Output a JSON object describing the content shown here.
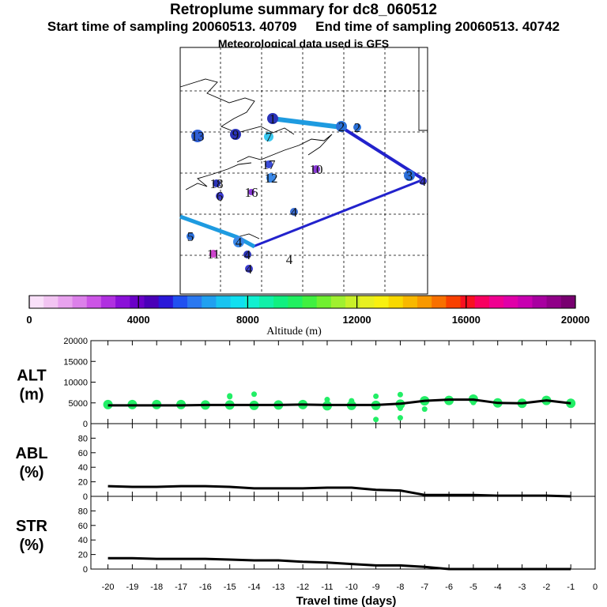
{
  "header": {
    "title": "Retroplume summary for dc8_060512",
    "start_label": "Start time of sampling 20060513. 40709",
    "end_label": "End time of sampling 20060513. 40742",
    "met_label": "Meteorological data used is GFS"
  },
  "colors": {
    "path_light": "#1e9be0",
    "path_dark": "#2222cc",
    "alt_point": "#22ee66",
    "line": "#000000"
  },
  "map": {
    "points": [
      {
        "label": "1",
        "color": "#2a33b8"
      },
      {
        "label": "2",
        "color": "#2a70d8"
      },
      {
        "label": "2",
        "color": "#2a70d8"
      },
      {
        "label": "13",
        "color": "#2e5fd6"
      },
      {
        "label": "9",
        "color": "#2a33b8"
      },
      {
        "label": "7",
        "color": "#38c8f0"
      },
      {
        "label": "17",
        "color": "#3b4bd8"
      },
      {
        "label": "10",
        "color": "#8a3ad8"
      },
      {
        "label": "3",
        "color": "#2a6ed8"
      },
      {
        "label": "12",
        "color": "#3a88e8"
      },
      {
        "label": "18",
        "color": "#2a33b8"
      },
      {
        "label": "6",
        "color": "#3b3bd0"
      },
      {
        "label": "16",
        "color": "#8a3ad8"
      },
      {
        "label": "4",
        "color": "#3a70d8"
      },
      {
        "label": "5",
        "color": "#2a6ed8"
      },
      {
        "label": "4",
        "color": "#3a88e8"
      },
      {
        "label": "4",
        "color": "#2a33b8"
      },
      {
        "label": "11",
        "color": "#cc44cc"
      },
      {
        "label": "4",
        "color": "#3b3bd0"
      },
      {
        "label": "4",
        "color": "#555555"
      },
      {
        "label": "4",
        "color": "#3b3bd0"
      }
    ]
  },
  "colorbar": {
    "ticks": [
      "0",
      "4000",
      "8000",
      "12000",
      "16000",
      "20000"
    ],
    "label": "Altitude  (m)",
    "colors": [
      "#f9e0f9",
      "#f2c4f2",
      "#e8a2ee",
      "#dc80ea",
      "#cc55e6",
      "#b030e0",
      "#8a10d8",
      "#6a00c8",
      "#4a00b8",
      "#2a18d8",
      "#2050f0",
      "#2a78f0",
      "#20a0f0",
      "#18c4f0",
      "#10e0f0",
      "#10f0d0",
      "#10f0a8",
      "#10f080",
      "#20f060",
      "#40f040",
      "#70f030",
      "#a0f030",
      "#c8f028",
      "#e8f020",
      "#f8f010",
      "#f8d800",
      "#f8b800",
      "#f89800",
      "#f87000",
      "#f84000",
      "#f81020",
      "#f80060",
      "#f00090",
      "#e000a8",
      "#c800b0",
      "#a800a0",
      "#900088",
      "#780070"
    ]
  },
  "chart_data": [
    {
      "type": "scatter",
      "panel_label": "ALT\n(m)",
      "panel_label_line1": "ALT",
      "panel_label_line2": "(m)",
      "ylim": [
        0,
        20000
      ],
      "yticks": [
        "0",
        "5000",
        "10000",
        "15000",
        "20000"
      ],
      "line": {
        "x": [
          -20,
          -19,
          -18,
          -17,
          -16,
          -15,
          -14,
          -13,
          -12,
          -11,
          -10,
          -9,
          -8,
          -7,
          -6,
          -5,
          -4,
          -3,
          -2,
          -1
        ],
        "y": [
          4400,
          4400,
          4400,
          4400,
          4500,
          4500,
          4500,
          4500,
          4600,
          4500,
          4500,
          4500,
          4800,
          5500,
          5800,
          5800,
          5000,
          4900,
          5600,
          4900
        ]
      },
      "points": {
        "x": [
          -20,
          -19,
          -18,
          -17,
          -16,
          -15,
          -14,
          -13,
          -12,
          -11,
          -10,
          -9,
          -8,
          -7,
          -6,
          -5,
          -4,
          -3,
          -2,
          -1,
          -15,
          -14,
          -11,
          -10,
          -9,
          -8,
          -8,
          -7,
          -6,
          -5,
          -15,
          -9,
          -8
        ],
        "y": [
          4600,
          4600,
          4600,
          4600,
          4500,
          4500,
          4400,
          4500,
          4600,
          4300,
          4400,
          4400,
          4700,
          5500,
          5600,
          5900,
          5000,
          4900,
          5600,
          4900,
          6700,
          7100,
          5800,
          5500,
          6600,
          7000,
          3700,
          3500,
          5800,
          5100,
          6500,
          1000,
          1400
        ]
      }
    },
    {
      "type": "line",
      "panel_label_line1": "ABL",
      "panel_label_line2": "(%)",
      "ylim": [
        0,
        100
      ],
      "yticks": [
        "0",
        "20",
        "40",
        "60",
        "80"
      ],
      "x": [
        -20,
        -19,
        -18,
        -17,
        -16,
        -15,
        -14,
        -13,
        -12,
        -11,
        -10,
        -9,
        -8,
        -7,
        -6,
        -5,
        -4,
        -3,
        -2,
        -1
      ],
      "y": [
        14,
        13,
        13,
        14,
        14,
        13,
        11,
        11,
        11,
        12,
        12,
        9,
        8,
        2,
        2,
        2,
        1,
        1,
        1,
        0
      ]
    },
    {
      "type": "line",
      "panel_label_line1": "STR",
      "panel_label_line2": "(%)",
      "ylim": [
        0,
        100
      ],
      "yticks": [
        "0",
        "20",
        "40",
        "60",
        "80"
      ],
      "x": [
        -20,
        -19,
        -18,
        -17,
        -16,
        -15,
        -14,
        -13,
        -12,
        -11,
        -10,
        -9,
        -8,
        -7,
        -6,
        -5,
        -4,
        -3,
        -2,
        -1
      ],
      "y": [
        15,
        15,
        14,
        14,
        14,
        13,
        12,
        12,
        10,
        9,
        7,
        5,
        5,
        3,
        0,
        0,
        0,
        0,
        0,
        0
      ]
    }
  ],
  "xaxis": {
    "ticks": [
      "-20",
      "-19",
      "-18",
      "-17",
      "-16",
      "-15",
      "-14",
      "-13",
      "-12",
      "-11",
      "-10",
      "-9",
      "-8",
      "-7",
      "-6",
      "-5",
      "-4",
      "-3",
      "-2",
      "-1",
      "0"
    ],
    "label": "Travel time (days)"
  }
}
